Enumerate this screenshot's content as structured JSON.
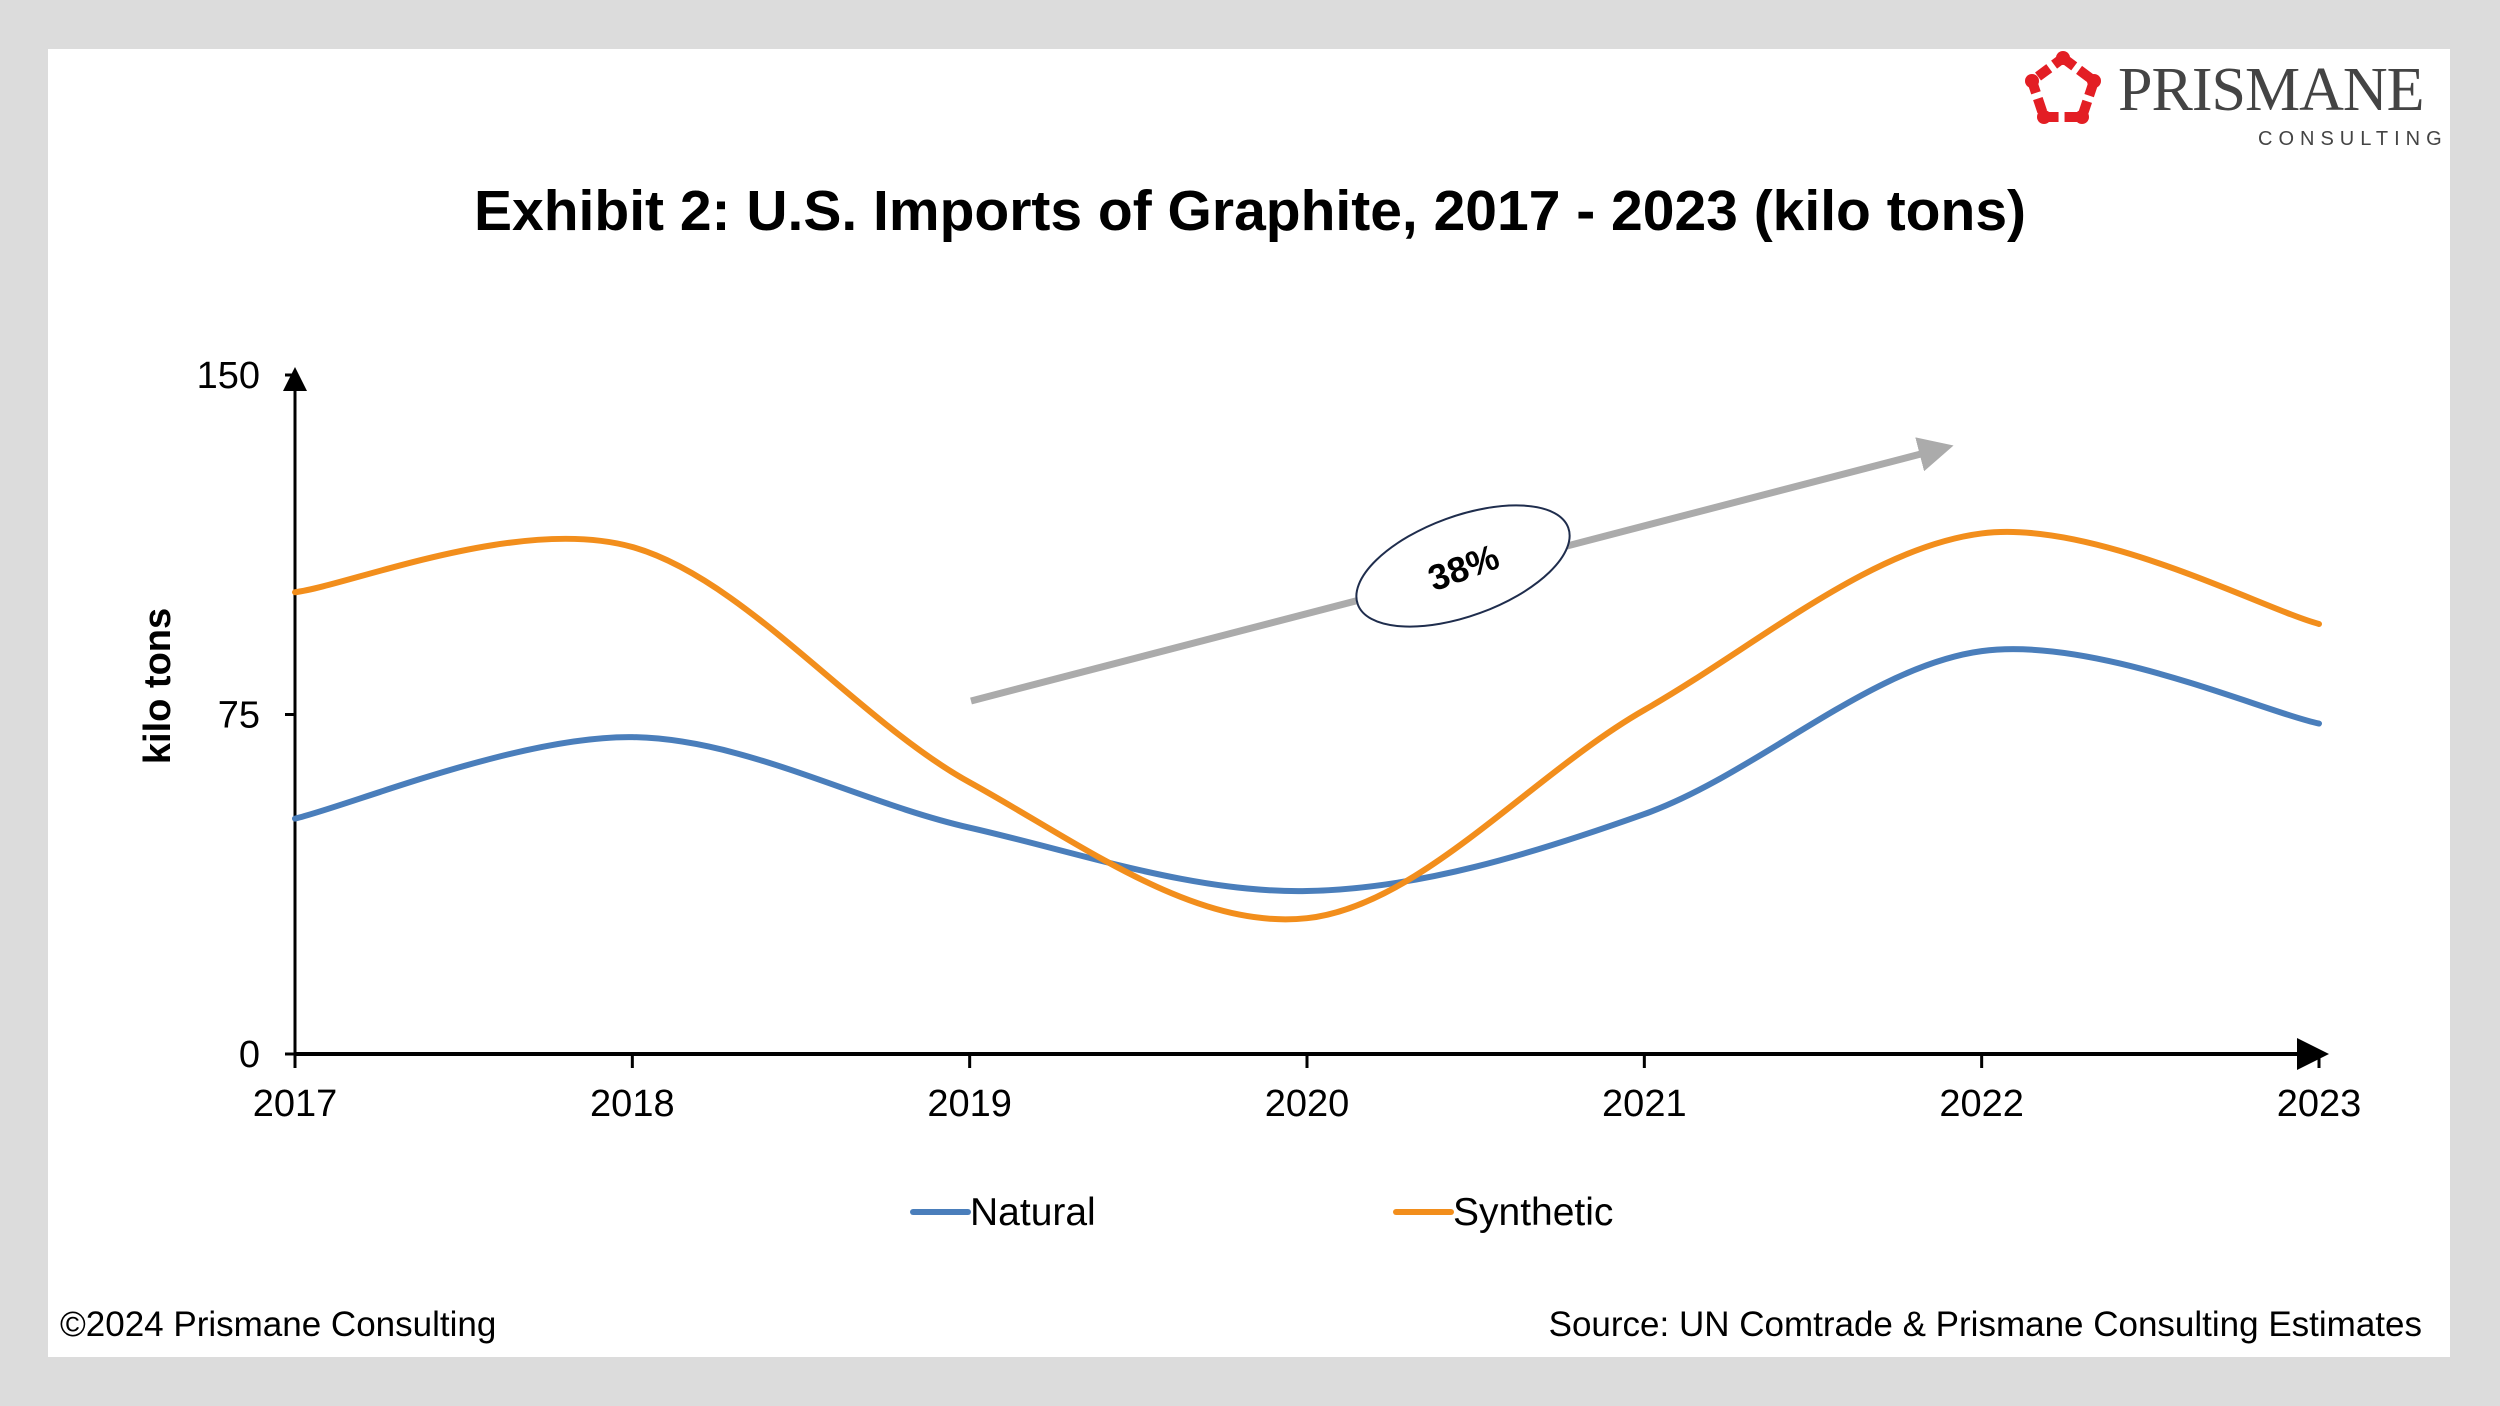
{
  "brand": {
    "name": "PRISMANE",
    "tagline": "CONSULTING",
    "color": "#e31e24"
  },
  "footer": {
    "copyright": "©2024 Prismane Consulting",
    "source": "Source: UN Comtrade & Prismane Consulting Estimates"
  },
  "chart_data": {
    "type": "line",
    "title": "Exhibit 2: U.S. Imports of Graphite, 2017 - 2023 (kilo tons)",
    "xlabel": "",
    "ylabel": "kilo tons",
    "categories": [
      "2017",
      "2018",
      "2019",
      "2020",
      "2021",
      "2022",
      "2023"
    ],
    "ylim": [
      0,
      150
    ],
    "yticks": [
      "0",
      "75",
      "150"
    ],
    "grid": false,
    "smooth": true,
    "legend": "bottom",
    "series": [
      {
        "name": "Natural",
        "color": "#4a7ebb",
        "values": [
          52,
          70,
          50,
          36,
          53,
          89,
          73
        ]
      },
      {
        "name": "Synthetic",
        "color": "#f28e1c",
        "values": [
          102,
          112,
          60,
          30,
          76,
          115,
          95
        ]
      }
    ],
    "annotation": {
      "label": "38%",
      "arrow_color": "#ababab"
    }
  }
}
